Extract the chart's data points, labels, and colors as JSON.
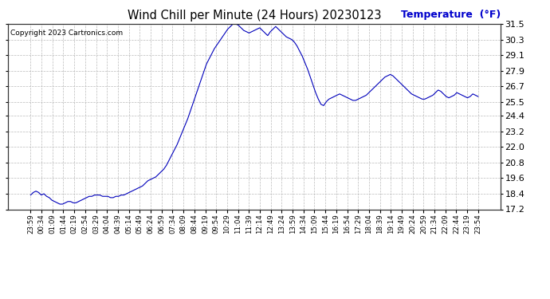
{
  "title": "Wind Chill per Minute (24 Hours) 20230123",
  "copyright": "Copyright 2023 Cartronics.com",
  "ylabel": "Temperature  (°F)",
  "line_color": "#0000bb",
  "ylabel_color": "#0000cc",
  "background_color": "#ffffff",
  "grid_color": "#bbbbbb",
  "ylim": [
    17.2,
    31.5
  ],
  "yticks": [
    17.2,
    18.4,
    19.6,
    20.8,
    22.0,
    23.2,
    24.4,
    25.5,
    26.7,
    27.9,
    29.1,
    30.3,
    31.5
  ],
  "xtick_labels": [
    "23:59",
    "00:34",
    "01:09",
    "01:44",
    "02:19",
    "02:54",
    "03:29",
    "04:04",
    "04:39",
    "05:14",
    "05:49",
    "06:24",
    "06:59",
    "07:34",
    "08:09",
    "08:44",
    "09:19",
    "09:54",
    "10:29",
    "11:04",
    "11:39",
    "12:14",
    "12:49",
    "13:24",
    "13:59",
    "14:34",
    "15:09",
    "15:44",
    "16:19",
    "16:54",
    "17:29",
    "18:04",
    "18:39",
    "19:14",
    "19:49",
    "20:24",
    "20:59",
    "21:34",
    "22:09",
    "22:44",
    "23:19",
    "23:54"
  ],
  "data_y": [
    18.3,
    18.5,
    18.6,
    18.5,
    18.3,
    18.4,
    18.2,
    18.1,
    17.9,
    17.8,
    17.7,
    17.6,
    17.6,
    17.7,
    17.8,
    17.8,
    17.7,
    17.7,
    17.8,
    17.9,
    18.0,
    18.1,
    18.2,
    18.2,
    18.3,
    18.3,
    18.3,
    18.2,
    18.2,
    18.2,
    18.1,
    18.1,
    18.2,
    18.2,
    18.3,
    18.3,
    18.4,
    18.5,
    18.6,
    18.7,
    18.8,
    18.9,
    19.0,
    19.2,
    19.4,
    19.5,
    19.6,
    19.7,
    19.9,
    20.1,
    20.3,
    20.6,
    21.0,
    21.4,
    21.8,
    22.2,
    22.7,
    23.2,
    23.7,
    24.2,
    24.8,
    25.4,
    26.0,
    26.6,
    27.2,
    27.8,
    28.4,
    28.8,
    29.2,
    29.6,
    29.9,
    30.2,
    30.5,
    30.8,
    31.1,
    31.3,
    31.5,
    31.5,
    31.4,
    31.2,
    31.0,
    30.9,
    30.8,
    30.9,
    31.0,
    31.1,
    31.2,
    31.0,
    30.8,
    30.6,
    30.9,
    31.1,
    31.3,
    31.1,
    30.9,
    30.7,
    30.5,
    30.4,
    30.3,
    30.1,
    29.8,
    29.4,
    29.0,
    28.5,
    28.0,
    27.4,
    26.8,
    26.2,
    25.7,
    25.3,
    25.2,
    25.5,
    25.7,
    25.8,
    25.9,
    26.0,
    26.1,
    26.0,
    25.9,
    25.8,
    25.7,
    25.6,
    25.6,
    25.7,
    25.8,
    25.9,
    26.0,
    26.2,
    26.4,
    26.6,
    26.8,
    27.0,
    27.2,
    27.4,
    27.5,
    27.6,
    27.5,
    27.3,
    27.1,
    26.9,
    26.7,
    26.5,
    26.3,
    26.1,
    26.0,
    25.9,
    25.8,
    25.7,
    25.7,
    25.8,
    25.9,
    26.0,
    26.2,
    26.4,
    26.3,
    26.1,
    25.9,
    25.8,
    25.9,
    26.0,
    26.2,
    26.1,
    26.0,
    25.9,
    25.8,
    25.9,
    26.1,
    26.0,
    25.9
  ]
}
